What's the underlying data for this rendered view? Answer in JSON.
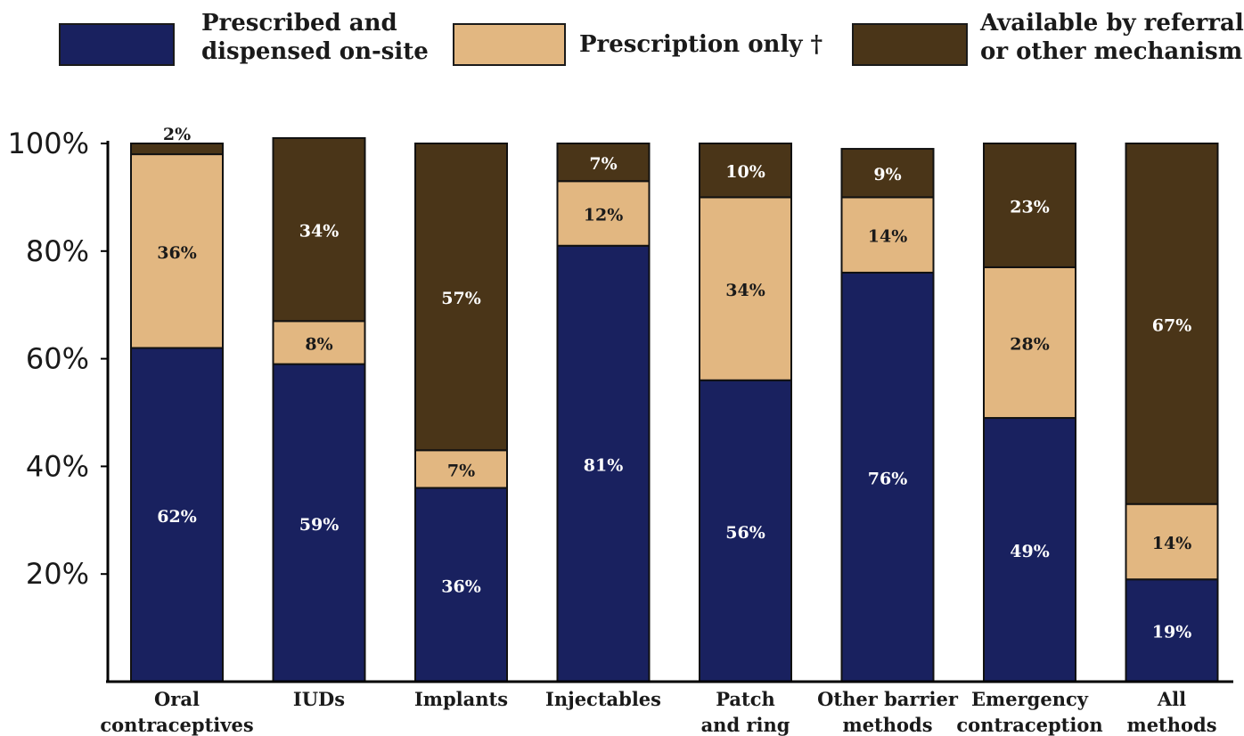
{
  "chart_data": {
    "type": "bar",
    "stacked": true,
    "categories": [
      [
        "Oral",
        "contraceptives"
      ],
      [
        "IUDs"
      ],
      [
        "Implants"
      ],
      [
        "Injectables"
      ],
      [
        "Patch",
        "and ring"
      ],
      [
        "Other barrier",
        "methods"
      ],
      [
        "Emergency",
        "contraception"
      ],
      [
        "All",
        "methods"
      ]
    ],
    "series": [
      {
        "name": "Prescribed and dispensed on-site",
        "name_lines": [
          "Prescribed and",
          "dispensed on-site"
        ],
        "color": "#19215f",
        "label_color": "#ffffff",
        "values": [
          62,
          59,
          36,
          81,
          56,
          76,
          49,
          19
        ],
        "labels": [
          "62%",
          "59%",
          "36%",
          "81%",
          "56%",
          "76%",
          "49%",
          "19%"
        ]
      },
      {
        "name": "Prescription only †",
        "name_lines": [
          "Prescription only †"
        ],
        "color": "#e2b781",
        "label_color": "#1a1a1a",
        "values": [
          36,
          8,
          7,
          12,
          34,
          14,
          28,
          14
        ],
        "labels": [
          "36%",
          "8%",
          "7%",
          "12%",
          "34%",
          "14%",
          "28%",
          "14%"
        ]
      },
      {
        "name": "Available by referral or other mechanism",
        "name_lines": [
          "Available by referral",
          "or other mechanism"
        ],
        "color": "#4a3518",
        "label_color": "#ffffff",
        "values": [
          2,
          34,
          57,
          7,
          10,
          9,
          23,
          67
        ],
        "labels": [
          "2%",
          "34%",
          "57%",
          "7%",
          "10%",
          "9%",
          "23%",
          "67%"
        ]
      }
    ],
    "yticks": [
      20,
      40,
      60,
      80,
      100
    ],
    "ytick_labels": [
      "20%",
      "40%",
      "60%",
      "80%",
      "100%"
    ],
    "ylim": [
      0,
      100
    ],
    "legend_position": "top",
    "grid": false
  }
}
